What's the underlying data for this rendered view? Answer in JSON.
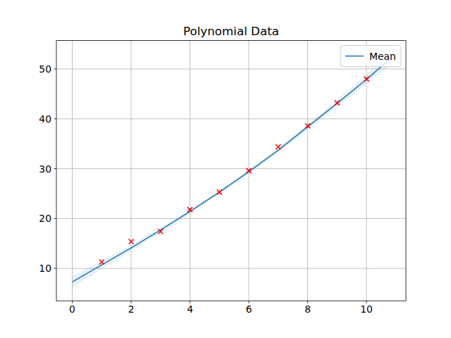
{
  "chart_data": {
    "type": "line",
    "title": "Polynomial Data",
    "xlim": [
      -0.54,
      11.34
    ],
    "ylim": [
      3.5,
      55.7
    ],
    "xticks": [
      0,
      2,
      4,
      6,
      8,
      10
    ],
    "yticks": [
      10,
      20,
      30,
      40,
      50
    ],
    "grid": true,
    "legend": "upper-right",
    "series": [
      {
        "name": "Mean",
        "type": "line",
        "color": "#1f77b4",
        "x": [
          0,
          1,
          2,
          3,
          4,
          5,
          6,
          7,
          8,
          9,
          10,
          10.8
        ],
        "values": [
          7.3,
          10.7,
          14.1,
          17.7,
          21.4,
          25.3,
          29.4,
          33.7,
          38.4,
          43.1,
          47.9,
          52.0
        ],
        "lower": [
          6.1,
          9.9,
          13.5,
          17.2,
          21.0,
          25.0,
          29.0,
          33.3,
          37.9,
          42.4,
          47.0,
          50.7
        ],
        "upper": [
          8.5,
          11.5,
          14.7,
          18.2,
          21.8,
          25.6,
          29.8,
          34.1,
          38.9,
          43.8,
          48.8,
          53.3
        ]
      },
      {
        "type": "scatter",
        "color": "#ff0000",
        "marker": "x",
        "x": [
          1,
          2,
          3,
          4,
          5,
          6,
          7,
          8,
          9,
          10
        ],
        "values": [
          11.3,
          15.4,
          17.4,
          21.8,
          25.3,
          29.6,
          34.4,
          38.6,
          43.2,
          48.0
        ]
      }
    ]
  }
}
